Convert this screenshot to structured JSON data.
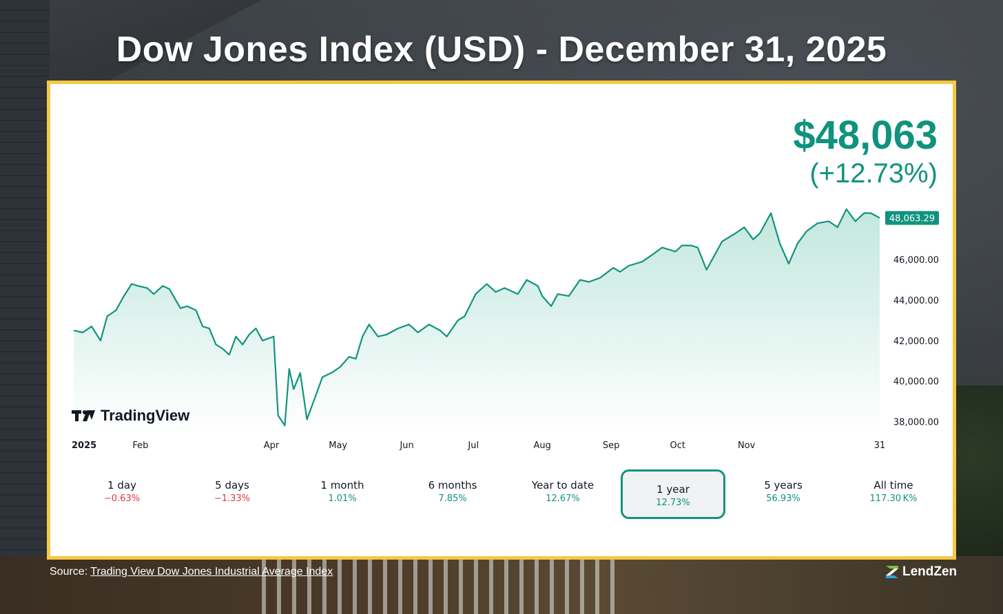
{
  "title": "Dow Jones Index (USD) - December 31, 2025",
  "price_display": "$48,063",
  "change_display": "(+12.73%)",
  "brand_watermark": "TradingView",
  "colors": {
    "line": "#10937e",
    "fill_top": "#bfe6dc",
    "positive": "#10937e",
    "negative": "#e03a3e",
    "frame": "#f5c842",
    "last_price_tag": "#10937e"
  },
  "chart_data": {
    "type": "area",
    "title": "",
    "xlabel": "",
    "ylabel": "",
    "x_range": [
      "2025-01-01",
      "2025-12-31"
    ],
    "ylim": [
      37500,
      48900
    ],
    "y_ticks": [
      "38,000.00",
      "40,000.00",
      "42,000.00",
      "44,000.00",
      "46,000.00"
    ],
    "y_tick_values": [
      38000,
      40000,
      42000,
      44000,
      46000
    ],
    "x_tick_labels": [
      "2025",
      "Feb",
      "Apr",
      "May",
      "Jun",
      "Jul",
      "Aug",
      "Sep",
      "Oct",
      "Nov",
      "31"
    ],
    "x_tick_dates": [
      "2025-01-01",
      "2025-02-01",
      "2025-04-01",
      "2025-05-01",
      "2025-06-01",
      "2025-07-01",
      "2025-08-01",
      "2025-09-01",
      "2025-10-01",
      "2025-11-01",
      "2025-12-31"
    ],
    "last_value_label": "48,063.29",
    "last_value": 48063.29,
    "grid": false,
    "series": [
      {
        "dates": [
          "2025-01-02",
          "2025-01-06",
          "2025-01-10",
          "2025-01-14",
          "2025-01-17",
          "2025-01-21",
          "2025-01-24",
          "2025-01-28",
          "2025-01-31",
          "2025-02-04",
          "2025-02-07",
          "2025-02-11",
          "2025-02-14",
          "2025-02-19",
          "2025-02-22",
          "2025-02-26",
          "2025-03-01",
          "2025-03-04",
          "2025-03-07",
          "2025-03-10",
          "2025-03-13",
          "2025-03-16",
          "2025-03-19",
          "2025-03-22",
          "2025-03-25",
          "2025-03-28",
          "2025-04-02",
          "2025-04-04",
          "2025-04-07",
          "2025-04-09",
          "2025-04-11",
          "2025-04-14",
          "2025-04-17",
          "2025-04-21",
          "2025-04-24",
          "2025-04-28",
          "2025-05-02",
          "2025-05-06",
          "2025-05-09",
          "2025-05-12",
          "2025-05-15",
          "2025-05-19",
          "2025-05-23",
          "2025-05-28",
          "2025-06-02",
          "2025-06-06",
          "2025-06-11",
          "2025-06-16",
          "2025-06-19",
          "2025-06-24",
          "2025-06-27",
          "2025-07-02",
          "2025-07-07",
          "2025-07-11",
          "2025-07-15",
          "2025-07-21",
          "2025-07-25",
          "2025-07-30",
          "2025-08-01",
          "2025-08-05",
          "2025-08-08",
          "2025-08-13",
          "2025-08-18",
          "2025-08-22",
          "2025-08-27",
          "2025-09-02",
          "2025-09-05",
          "2025-09-09",
          "2025-09-15",
          "2025-09-19",
          "2025-09-24",
          "2025-09-30",
          "2025-10-03",
          "2025-10-07",
          "2025-10-10",
          "2025-10-14",
          "2025-10-17",
          "2025-10-21",
          "2025-10-27",
          "2025-10-31",
          "2025-11-04",
          "2025-11-07",
          "2025-11-12",
          "2025-11-16",
          "2025-11-20",
          "2025-11-24",
          "2025-11-28",
          "2025-12-03",
          "2025-12-08",
          "2025-12-12",
          "2025-12-16",
          "2025-12-20",
          "2025-12-24",
          "2025-12-27",
          "2025-12-31"
        ],
        "values": [
          42500,
          42400,
          42700,
          42000,
          43200,
          43500,
          44100,
          44800,
          44700,
          44600,
          44300,
          44700,
          44550,
          43600,
          43700,
          43500,
          42700,
          42600,
          41800,
          41600,
          41300,
          42200,
          41800,
          42300,
          42600,
          42000,
          42200,
          38300,
          37800,
          40600,
          39600,
          40400,
          38100,
          39300,
          40200,
          40400,
          40700,
          41200,
          41100,
          42200,
          42800,
          42200,
          42300,
          42600,
          42800,
          42400,
          42800,
          42500,
          42200,
          43000,
          43200,
          44300,
          44800,
          44400,
          44600,
          44300,
          45000,
          44700,
          44200,
          43700,
          44300,
          44200,
          45000,
          44900,
          45100,
          45600,
          45400,
          45700,
          45900,
          46200,
          46600,
          46400,
          46700,
          46700,
          46600,
          45500,
          46100,
          46900,
          47300,
          47600,
          47000,
          47300,
          48300,
          46800,
          45800,
          46800,
          47400,
          47800,
          47900,
          47600,
          48500,
          47900,
          48300,
          48300,
          48063
        ]
      }
    ]
  },
  "periods": [
    {
      "label": "1 day",
      "value": "−0.63%",
      "sign": "neg"
    },
    {
      "label": "5 days",
      "value": "−1.33%",
      "sign": "neg"
    },
    {
      "label": "1 month",
      "value": "1.01%",
      "sign": "pos"
    },
    {
      "label": "6 months",
      "value": "7.85%",
      "sign": "pos"
    },
    {
      "label": "Year to date",
      "value": "12.67%",
      "sign": "pos"
    },
    {
      "label": "1 year",
      "value": "12.73%",
      "sign": "pos",
      "active": true
    },
    {
      "label": "5 years",
      "value": "56.93%",
      "sign": "pos"
    },
    {
      "label": "All time",
      "value": "117.30 K%",
      "sign": "pos"
    }
  ],
  "source": {
    "prefix": "Source: ",
    "link_text": "Trading View Dow Jones Industrial Average Index"
  },
  "brand": "LendZen"
}
